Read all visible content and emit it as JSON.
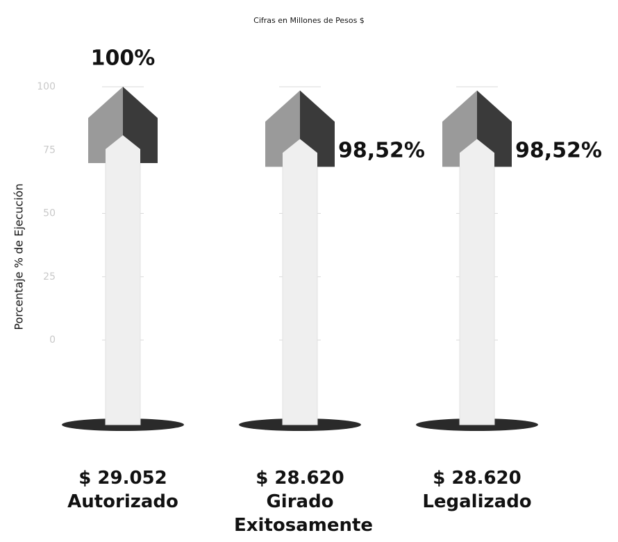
{
  "chart_data": {
    "type": "arrow",
    "title": "Cifras en Millones de Pesos $",
    "y_label": "Porcentaje % de Ejecución",
    "categories": [
      "Autorizado",
      "Girado Exitosamente",
      "Legalizado"
    ],
    "values": [
      100,
      98.52,
      98.52
    ],
    "value_labels": [
      "100%",
      "98,52%",
      "98,52%"
    ],
    "amount_labels": [
      "$ 29.052",
      "$ 28.620",
      "$ 28.620"
    ],
    "ylim": [
      0,
      100
    ],
    "yticks": [
      0,
      25,
      50,
      75,
      100
    ],
    "grid": true
  }
}
